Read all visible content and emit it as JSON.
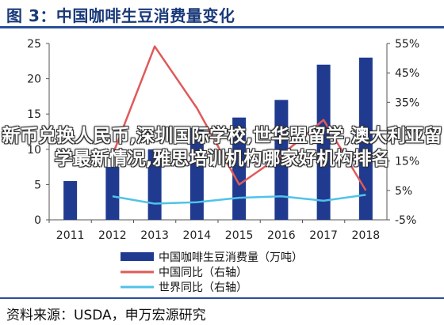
{
  "title": "图 3：中国咖啡生豆消费量变化",
  "source": "资料来源：USDA，申万宏源研究",
  "overlay_text": "新币兑换人民币,深圳国际学校,世华盟留学,澳大利亚留学最新情况,雅思培训机构哪家好机构排名",
  "colors": {
    "bar": "#1f3a8f",
    "china_line": "#e05a5a",
    "world_line": "#4fc3e8",
    "title": "#1a3a7a",
    "rule": "#2a4f9a"
  },
  "chart_data": {
    "type": "bar",
    "categories": [
      "2011",
      "2012",
      "2013",
      "2014",
      "2015",
      "2016",
      "2017",
      "2018"
    ],
    "series": [
      {
        "name": "中国咖啡生豆消费量（万吨）",
        "type": "bar",
        "axis": "left",
        "values": [
          5.5,
          7.5,
          10.0,
          13.0,
          14.5,
          17.0,
          22.0,
          23.0
        ]
      },
      {
        "name": "中国同比（右轴）",
        "type": "line",
        "axis": "right",
        "values": [
          null,
          17.0,
          54.0,
          33.0,
          7.0,
          17.0,
          29.0,
          5.0
        ]
      },
      {
        "name": "世界同比（右轴）",
        "type": "line",
        "axis": "right",
        "values": [
          null,
          3.0,
          0.5,
          1.0,
          2.5,
          3.0,
          1.5,
          3.5
        ]
      }
    ],
    "left_axis": {
      "min": 0,
      "max": 25,
      "ticks": [
        "0",
        "5",
        "10",
        "15",
        "20",
        "25"
      ]
    },
    "right_axis": {
      "min": -5,
      "max": 55,
      "ticks": [
        "-5%",
        "5%",
        "15%",
        "25%",
        "35%",
        "45%",
        "55%"
      ]
    },
    "legend": [
      "中国咖啡生豆消费量（万吨）",
      "中国同比（右轴）",
      "世界同比（右轴）"
    ],
    "legend_position": "bottom",
    "grid": false
  }
}
